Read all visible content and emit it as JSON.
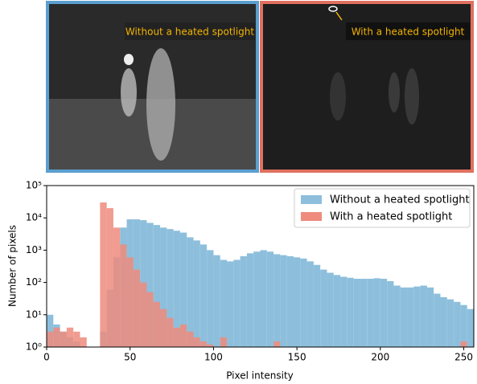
{
  "images": [
    {
      "label": "Without a heated spotlight"
    },
    {
      "label": "With a heated spotlight"
    }
  ],
  "chart_data": {
    "type": "histogram",
    "xlabel": "Pixel intensity",
    "ylabel": "Number of pixels",
    "bins": [
      0,
      4,
      8,
      12,
      16,
      20,
      24,
      28,
      32,
      36,
      40,
      44,
      48,
      52,
      56,
      60,
      64,
      68,
      72,
      76,
      80,
      84,
      88,
      92,
      96,
      100,
      104,
      108,
      112,
      116,
      120,
      124,
      128,
      132,
      136,
      140,
      144,
      148,
      152,
      156,
      160,
      164,
      168,
      172,
      176,
      180,
      184,
      188,
      192,
      196,
      200,
      204,
      208,
      212,
      216,
      220,
      224,
      228,
      232,
      236,
      240,
      244,
      248,
      252,
      256
    ],
    "series": [
      {
        "name": "Without a heated spotlight",
        "color": "#8dbfdc",
        "values": [
          10,
          5,
          3,
          2,
          1.5,
          1,
          1,
          1,
          3,
          60,
          600,
          5000,
          9000,
          9000,
          8500,
          7000,
          6000,
          5000,
          4500,
          4000,
          3500,
          2500,
          2000,
          1500,
          1000,
          700,
          500,
          450,
          500,
          650,
          800,
          900,
          1000,
          900,
          750,
          700,
          650,
          600,
          550,
          450,
          350,
          250,
          200,
          170,
          150,
          140,
          130,
          130,
          130,
          135,
          130,
          110,
          80,
          70,
          70,
          75,
          80,
          70,
          45,
          35,
          30,
          25,
          20,
          15
        ]
      },
      {
        "name": "With a heated spotlight",
        "color": "#ee8b7d",
        "values": [
          3,
          4,
          3,
          4,
          3,
          2,
          1,
          1,
          30000,
          20000,
          5000,
          1500,
          600,
          250,
          100,
          50,
          25,
          15,
          8,
          4,
          5,
          3,
          2,
          1.5,
          1.2,
          1,
          2,
          1,
          1,
          1,
          1,
          1,
          1,
          1,
          1.5,
          1,
          1,
          1,
          1,
          1,
          1,
          1,
          1,
          1,
          1,
          1,
          1,
          1,
          1,
          1,
          1,
          1,
          1,
          1,
          1,
          1,
          1,
          1,
          1,
          1,
          1,
          1,
          1.5,
          1
        ]
      }
    ],
    "xlim": [
      0,
      256
    ],
    "xticks": [
      0,
      50,
      100,
      150,
      200,
      250
    ],
    "ylim": [
      1,
      100000
    ],
    "yscale": "log",
    "yticks": [
      {
        "value": 1,
        "label": "10⁰"
      },
      {
        "value": 10,
        "label": "10¹"
      },
      {
        "value": 100,
        "label": "10²"
      },
      {
        "value": 1000,
        "label": "10³"
      },
      {
        "value": 10000,
        "label": "10⁴"
      },
      {
        "value": 100000,
        "label": "10⁵"
      }
    ],
    "legend": "upper right"
  }
}
